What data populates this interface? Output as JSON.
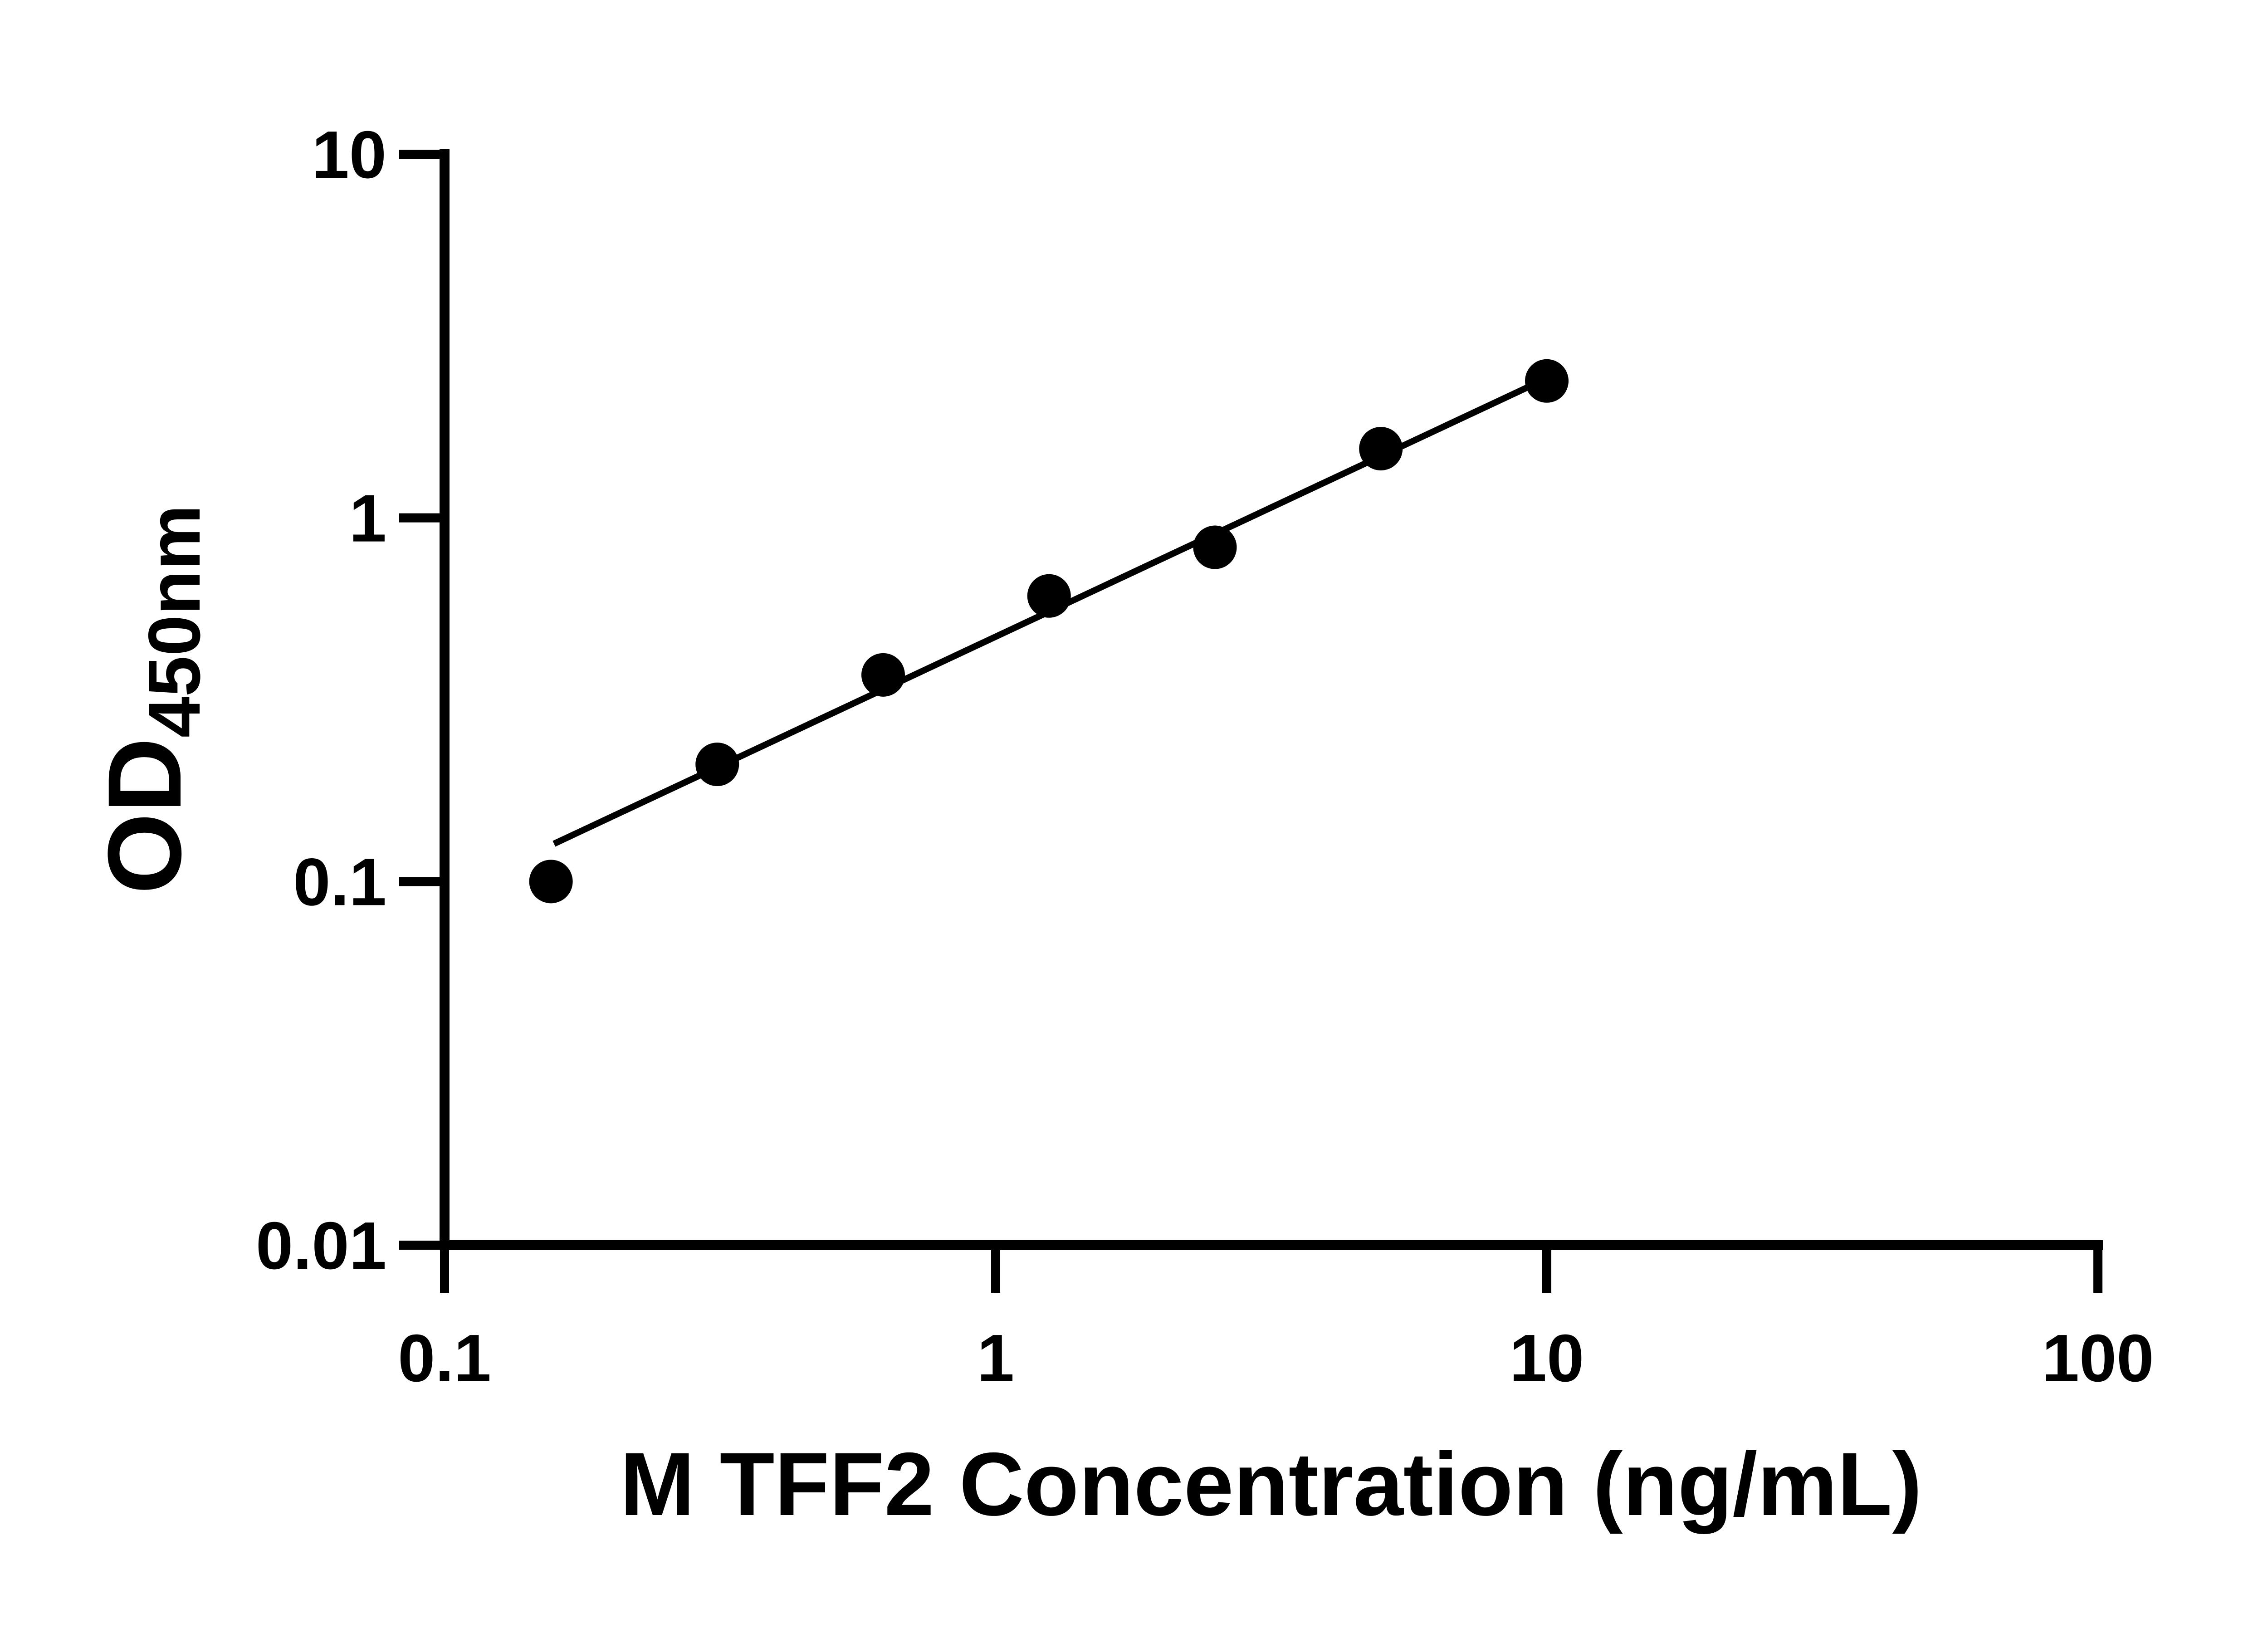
{
  "chart_data": {
    "type": "scatter",
    "title": "",
    "xlabel": "M TFF2 Concentration (ng/mL)",
    "ylabel_main": "OD",
    "ylabel_sub": "450nm",
    "x_scale": "log",
    "y_scale": "log",
    "xlim": [
      0.1,
      100
    ],
    "ylim": [
      0.01,
      10
    ],
    "x_ticks": [
      0.1,
      1,
      10,
      100
    ],
    "x_tick_labels": [
      "0.1",
      "1",
      "10",
      "100"
    ],
    "y_ticks": [
      10,
      1,
      0.1,
      0.01
    ],
    "y_tick_labels": [
      "10",
      "1",
      "0.1",
      "0.01"
    ],
    "grid": "off",
    "legend": "none",
    "series": [
      {
        "name": "standard-curve-points",
        "marker": "filled-circle",
        "x": [
          0.156,
          0.3125,
          0.625,
          1.25,
          2.5,
          5,
          10
        ],
        "y": [
          0.1,
          0.21,
          0.37,
          0.61,
          0.83,
          1.55,
          2.38
        ]
      }
    ],
    "trend_line": {
      "x1": 0.158,
      "y1": 0.127,
      "x2": 10,
      "y2": 2.42
    },
    "colors": {
      "background": "#ffffff",
      "axis": "#000000",
      "marker": "#000000",
      "line": "#000000",
      "text": "#000000"
    }
  }
}
